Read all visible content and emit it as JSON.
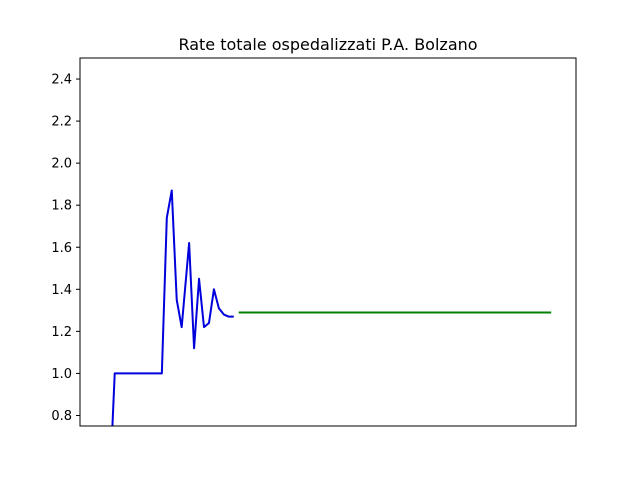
{
  "chart_data": {
    "type": "line",
    "title": "Rate totale ospedalizzati P.A. Bolzano",
    "xlabel": "",
    "ylabel": "",
    "ylim": [
      0.75,
      2.5
    ],
    "xlim": [
      0,
      100
    ],
    "yticks": [
      "0.8",
      "1.0",
      "1.2",
      "1.4",
      "1.6",
      "1.8",
      "2.0",
      "2.2",
      "2.4"
    ],
    "ytick_values": [
      0.8,
      1.0,
      1.2,
      1.4,
      1.6,
      1.8,
      2.0,
      2.2,
      2.4
    ],
    "grid": false,
    "series": [
      {
        "color": "#0000dd",
        "x": [
          6.5,
          7.0,
          16.5,
          17.5,
          18.5,
          19.5,
          20.5,
          22.0,
          23.0,
          24.0,
          25.0,
          26.0,
          27.0,
          28.0,
          29.0,
          30.0,
          31.0
        ],
        "y": [
          0.73,
          1.0,
          1.0,
          1.74,
          1.87,
          1.35,
          1.22,
          1.62,
          1.12,
          1.45,
          1.22,
          1.24,
          1.4,
          1.31,
          1.28,
          1.27,
          1.27
        ]
      },
      {
        "color": "#008000",
        "x": [
          32.0,
          95.0
        ],
        "y": [
          1.29,
          1.29
        ]
      }
    ]
  }
}
